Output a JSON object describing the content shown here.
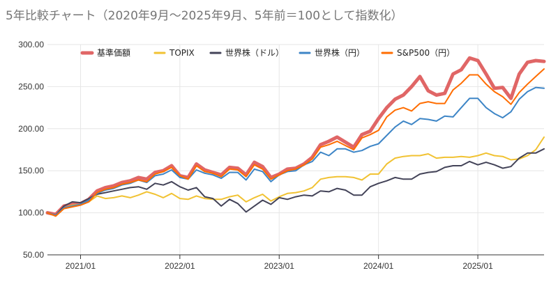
{
  "chart_data": {
    "type": "line",
    "title": "5年比較チャート（2020年9月～2025年9月、5年前＝100として指数化）",
    "xlabel": "",
    "ylabel": "",
    "ylim": [
      50,
      300
    ],
    "yticks": [
      "300.00",
      "250.00",
      "200.00",
      "150.00",
      "100.00",
      "50.00"
    ],
    "ytick_values": [
      300,
      250,
      200,
      150,
      100,
      50
    ],
    "xlim": [
      "2020-09",
      "2025-09"
    ],
    "xticks": [
      {
        "label": "2021/01",
        "date": "2021-01"
      },
      {
        "label": "2022/01",
        "date": "2022-01"
      },
      {
        "label": "2023/01",
        "date": "2023-01"
      },
      {
        "label": "2024/01",
        "date": "2024-01"
      },
      {
        "label": "2025/01",
        "date": "2025-01"
      }
    ],
    "grid": true,
    "legend_position": "top",
    "x": [
      "2020-09",
      "2020-10",
      "2020-11",
      "2020-12",
      "2021-01",
      "2021-02",
      "2021-03",
      "2021-04",
      "2021-05",
      "2021-06",
      "2021-07",
      "2021-08",
      "2021-09",
      "2021-10",
      "2021-11",
      "2021-12",
      "2022-01",
      "2022-02",
      "2022-03",
      "2022-04",
      "2022-05",
      "2022-06",
      "2022-07",
      "2022-08",
      "2022-09",
      "2022-10",
      "2022-11",
      "2022-12",
      "2023-01",
      "2023-02",
      "2023-03",
      "2023-04",
      "2023-05",
      "2023-06",
      "2023-07",
      "2023-08",
      "2023-09",
      "2023-10",
      "2023-11",
      "2023-12",
      "2024-01",
      "2024-02",
      "2024-03",
      "2024-04",
      "2024-05",
      "2024-06",
      "2024-07",
      "2024-08",
      "2024-09",
      "2024-10",
      "2024-11",
      "2024-12",
      "2025-01",
      "2025-02",
      "2025-03",
      "2025-04",
      "2025-05",
      "2025-06",
      "2025-07",
      "2025-08",
      "2025-09"
    ],
    "series": [
      {
        "name": "基準価額",
        "color": "#e06666",
        "width": 5,
        "values": [
          100,
          98,
          108,
          110,
          111,
          116,
          126,
          130,
          132,
          136,
          138,
          142,
          140,
          148,
          150,
          156,
          144,
          142,
          158,
          151,
          148,
          145,
          154,
          153,
          145,
          160,
          155,
          142,
          146,
          152,
          153,
          158,
          166,
          181,
          185,
          190,
          184,
          178,
          193,
          197,
          212,
          225,
          235,
          240,
          250,
          262,
          245,
          240,
          242,
          265,
          270,
          284,
          281,
          265,
          248,
          249,
          236,
          265,
          279,
          281,
          280
        ]
      },
      {
        "name": "TOPIX",
        "color": "#f1c232",
        "width": 2,
        "values": [
          100,
          97,
          106,
          109,
          110,
          113,
          120,
          117,
          118,
          120,
          118,
          121,
          125,
          122,
          118,
          123,
          117,
          116,
          120,
          117,
          116,
          116,
          119,
          121,
          113,
          118,
          122,
          114,
          119,
          123,
          124,
          126,
          130,
          140,
          142,
          143,
          143,
          142,
          139,
          146,
          146,
          158,
          165,
          167,
          168,
          168,
          170,
          165,
          166,
          166,
          167,
          166,
          168,
          171,
          168,
          167,
          163,
          164,
          168,
          175,
          190
        ]
      },
      {
        "name": "世界株（ドル）",
        "color": "#434358",
        "width": 2,
        "values": [
          100,
          97,
          108,
          113,
          112,
          117,
          122,
          124,
          126,
          128,
          130,
          131,
          128,
          135,
          133,
          137,
          131,
          127,
          130,
          119,
          117,
          108,
          116,
          111,
          101,
          108,
          115,
          110,
          118,
          116,
          119,
          121,
          120,
          126,
          125,
          129,
          127,
          121,
          121,
          131,
          135,
          138,
          142,
          140,
          140,
          146,
          148,
          149,
          154,
          156,
          156,
          161,
          157,
          160,
          157,
          153,
          155,
          165,
          171,
          171,
          176
        ]
      },
      {
        "name": "世界株（円）",
        "color": "#3d85c6",
        "width": 2,
        "values": [
          100,
          97,
          106,
          108,
          110,
          115,
          123,
          127,
          129,
          133,
          135,
          139,
          136,
          144,
          146,
          151,
          142,
          140,
          151,
          147,
          145,
          141,
          148,
          148,
          139,
          152,
          149,
          137,
          145,
          149,
          150,
          157,
          161,
          172,
          168,
          176,
          176,
          172,
          174,
          179,
          182,
          192,
          202,
          209,
          205,
          212,
          211,
          209,
          215,
          214,
          225,
          236,
          236,
          225,
          218,
          213,
          220,
          235,
          244,
          249,
          248
        ]
      },
      {
        "name": "S&P500（円）",
        "color": "#ff6d01",
        "width": 2,
        "values": [
          100,
          96,
          105,
          107,
          109,
          113,
          124,
          128,
          130,
          134,
          136,
          139,
          137,
          146,
          149,
          154,
          144,
          140,
          156,
          149,
          147,
          143,
          152,
          151,
          143,
          157,
          152,
          140,
          145,
          150,
          152,
          157,
          164,
          178,
          181,
          185,
          180,
          175,
          189,
          193,
          198,
          214,
          222,
          225,
          221,
          230,
          232,
          230,
          230,
          246,
          254,
          264,
          264,
          253,
          244,
          238,
          229,
          243,
          253,
          262,
          271
        ]
      }
    ]
  }
}
